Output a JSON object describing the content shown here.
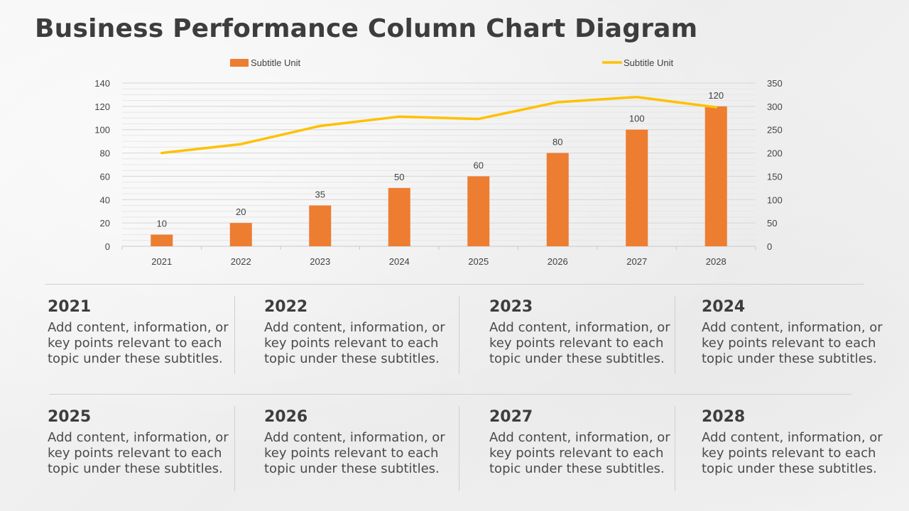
{
  "title": "Business Performance Column Chart Diagram",
  "colors": {
    "bar": "#ed7d31",
    "line": "#ffc000"
  },
  "chart_data": {
    "type": "bar",
    "categories": [
      "2021",
      "2022",
      "2023",
      "2024",
      "2025",
      "2026",
      "2027",
      "2028"
    ],
    "series": [
      {
        "name": "Subtitle Unit",
        "type": "bar",
        "axis": "left",
        "values": [
          10,
          20,
          35,
          50,
          60,
          80,
          100,
          120
        ],
        "data_labels": [
          "10",
          "20",
          "35",
          "50",
          "60",
          "80",
          "100",
          "120"
        ]
      },
      {
        "name": "Subtitle Unit",
        "type": "line",
        "axis": "right",
        "values": [
          200,
          219,
          258,
          278,
          273,
          309,
          320,
          298
        ]
      }
    ],
    "ylim_left": [
      0,
      140
    ],
    "ylim_right": [
      0,
      350
    ],
    "yticks_left": [
      "0",
      "20",
      "40",
      "60",
      "80",
      "100",
      "120",
      "140"
    ],
    "yticks_right": [
      "0",
      "50",
      "100",
      "150",
      "200",
      "250",
      "300",
      "350"
    ],
    "legend_position": "top",
    "grid": true
  },
  "cards": [
    {
      "year": "2021",
      "text": "Add content, information, or key points relevant to each topic under these subtitles."
    },
    {
      "year": "2022",
      "text": "Add content, information, or key points relevant to each topic under these subtitles."
    },
    {
      "year": "2023",
      "text": "Add content, information, or key points relevant to each topic under these subtitles."
    },
    {
      "year": "2024",
      "text": "Add content, information, or key points relevant to each topic under these subtitles."
    },
    {
      "year": "2025",
      "text": "Add content, information, or key points relevant to each topic under these subtitles."
    },
    {
      "year": "2026",
      "text": "Add content, information, or key points relevant to each topic under these subtitles."
    },
    {
      "year": "2027",
      "text": "Add content, information, or key points relevant to each topic under these subtitles."
    },
    {
      "year": "2028",
      "text": "Add content, information, or key points relevant to each topic under these subtitles."
    }
  ]
}
